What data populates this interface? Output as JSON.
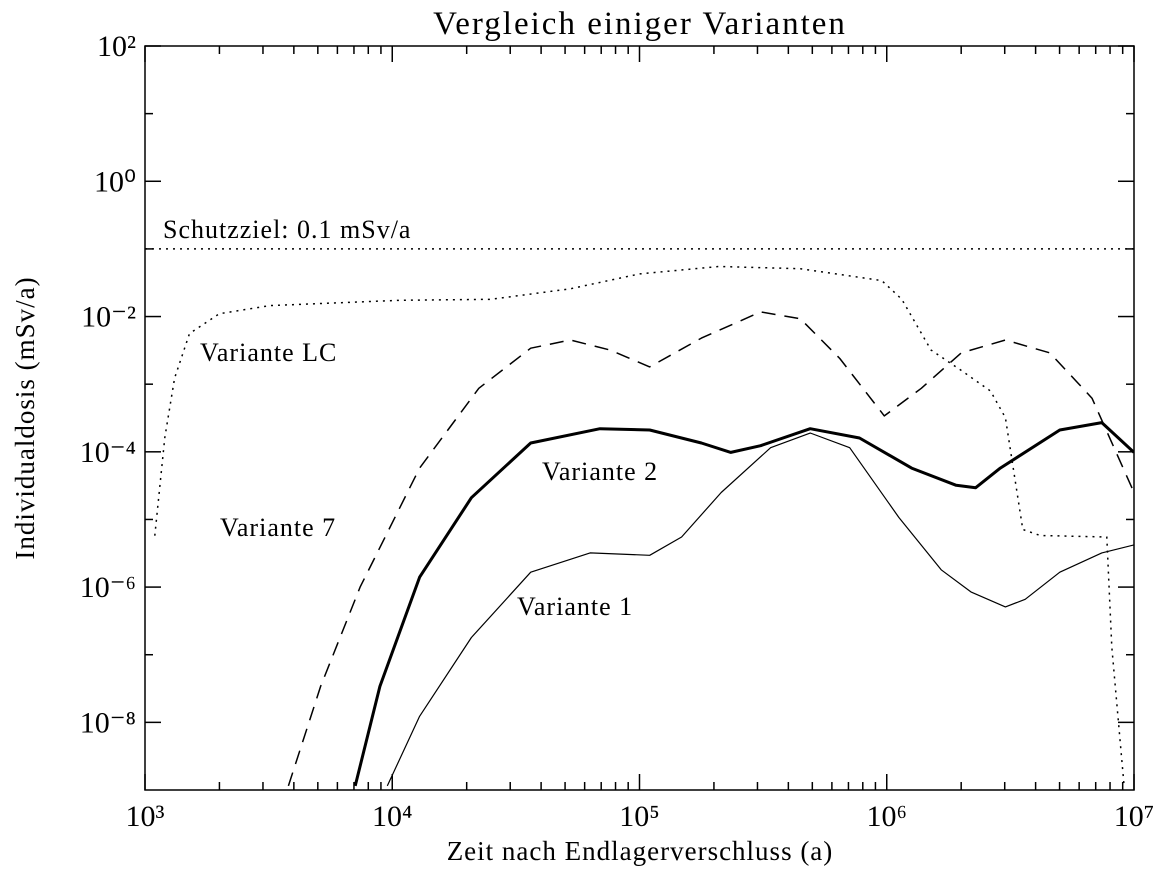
{
  "chart_data": {
    "type": "line",
    "title": "Vergleich einiger Varianten",
    "x_label": "Zeit nach Endlagerverschluss (a)",
    "y_label": "Individualdosis (mSv/a)",
    "xscale": "log",
    "yscale": "log",
    "xlim": [
      1000,
      10000000
    ],
    "ylim": [
      1e-09,
      100
    ],
    "xticks": [
      {
        "value": 1000,
        "label": "10³"
      },
      {
        "value": 10000,
        "label": "10⁴"
      },
      {
        "value": 100000,
        "label": "10⁵"
      },
      {
        "value": 1000000,
        "label": "10⁶"
      },
      {
        "value": 10000000,
        "label": "10⁷"
      }
    ],
    "xticks_minor": [
      2000,
      3000,
      4000,
      5000,
      6000,
      7000,
      8000,
      9000,
      20000,
      30000,
      40000,
      50000,
      60000,
      70000,
      80000,
      90000,
      200000,
      300000,
      400000,
      500000,
      600000,
      700000,
      800000,
      900000,
      2000000,
      3000000,
      4000000,
      5000000,
      6000000,
      7000000,
      8000000,
      9000000
    ],
    "yticks": [
      {
        "value": 100,
        "label": "10²"
      },
      {
        "value": 1,
        "label": "10⁰"
      },
      {
        "value": 0.01,
        "label": "10⁻²"
      },
      {
        "value": 0.0001,
        "label": "10⁻⁴"
      },
      {
        "value": 1e-06,
        "label": "10⁻⁶"
      },
      {
        "value": 1e-08,
        "label": "10⁻⁸"
      }
    ],
    "yticks_minor": [
      10,
      0.1,
      0.001,
      1e-05,
      1e-07
    ],
    "threshold": {
      "label": "Schutzziel: 0.1 mSv/a",
      "value": 0.1,
      "dash": "dotted",
      "color": "#000000"
    },
    "series": [
      {
        "name": "Variante LC",
        "color": "#000000",
        "dash": "dotted",
        "line_width": 1.5,
        "x": [
          1096,
          1202,
          1318,
          1514,
          2000,
          3200,
          10700,
          25100,
          52500,
          100000,
          209000,
          447000,
          955000,
          1150000,
          1510000,
          2000000,
          2630000,
          3020000,
          3550000,
          4170000,
          7760000,
          8130000,
          9120000
        ],
        "values": [
          5.75e-06,
          0.000162,
          0.00123,
          0.0056,
          0.011,
          0.0145,
          0.0174,
          0.018,
          0.0257,
          0.0427,
          0.055,
          0.051,
          0.034,
          0.018,
          0.0032,
          0.0016,
          0.00079,
          0.00032,
          7.1e-06,
          5.8e-06,
          5.5e-06,
          1.3e-07,
          1.15e-09
        ]
      },
      {
        "name": "Variante 7",
        "color": "#000000",
        "dash": "dashed",
        "line_width": 1.5,
        "x": [
          3800,
          5130,
          7410,
          12900,
          22400,
          36300,
          52500,
          75900,
          110000,
          178000,
          309000,
          447000,
          646000,
          977000,
          1380000,
          2000000,
          3020000,
          4570000,
          6760000,
          10000000
        ],
        "values": [
          1.15e-09,
          3.4e-08,
          1e-06,
          5.75e-05,
          0.00087,
          0.0034,
          0.0045,
          0.0032,
          0.0018,
          0.0048,
          0.0117,
          0.0093,
          0.0024,
          0.00034,
          0.00087,
          0.0029,
          0.0045,
          0.0029,
          0.00062,
          2.5e-05
        ]
      },
      {
        "name": "Variante 2",
        "color": "#000000",
        "dash": "solid",
        "line_width": 3,
        "x": [
          7080,
          8910,
          12900,
          20900,
          36300,
          69200,
          110000,
          178000,
          234000,
          309000,
          490000,
          776000,
          1260000,
          1910000,
          2290000,
          2880000,
          5010000,
          7410000,
          10000000
        ],
        "values": [
          1.15e-09,
          3.4e-08,
          1.4e-06,
          2.1e-05,
          0.000135,
          0.00022,
          0.00021,
          0.000135,
          9.8e-05,
          0.000123,
          0.00022,
          0.00016,
          5.75e-05,
          3.2e-05,
          2.95e-05,
          5.75e-05,
          0.00021,
          0.00027,
          9.8e-05
        ]
      },
      {
        "name": "Variante 1",
        "color": "#000000",
        "dash": "solid",
        "line_width": 1.2,
        "x": [
          9550,
          12900,
          20900,
          36300,
          63100,
          110000,
          148000,
          214000,
          339000,
          490000,
          708000,
          1120000,
          1660000,
          2190000,
          3020000,
          3630000,
          5010000,
          7410000,
          10000000
        ],
        "values": [
          1.15e-09,
          1.23e-08,
          1.8e-07,
          1.66e-06,
          3.2e-06,
          2.95e-06,
          5.5e-06,
          2.5e-05,
          0.000115,
          0.00019,
          0.000115,
          1.07e-05,
          1.8e-06,
          8.5e-07,
          5.1e-07,
          6.6e-07,
          1.66e-06,
          3.2e-06,
          4.2e-06
        ]
      }
    ]
  }
}
